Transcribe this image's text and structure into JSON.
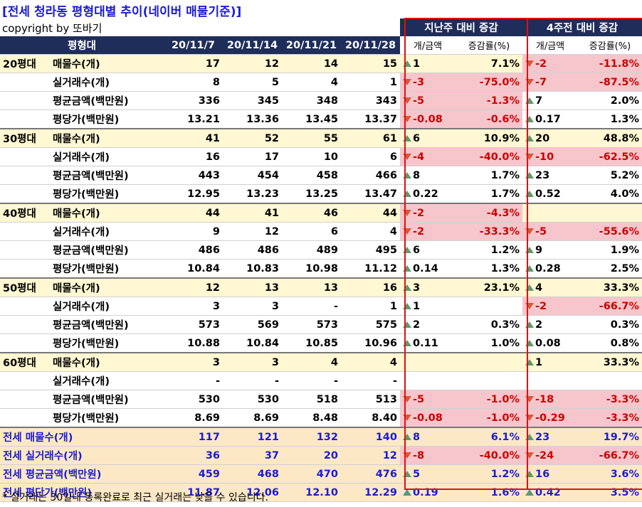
{
  "title": "[전세 청라동 평형대별 추이(네이버 매물기준)]",
  "copyright": "copyright by 또바기",
  "footnote": "* 실거래는 30일내 등록완료로 최근 실거래는 낮을 수 있습니다.",
  "group_week": "지난주 대비 증감",
  "group_4week": "4주전 대비 증감",
  "header": [
    "평형대",
    "",
    "20/11/7",
    "20/11/14",
    "20/11/21",
    "20/11/28",
    "개/금액",
    "증감률(%)",
    "개/금액",
    "증감률(%)"
  ],
  "rows": [
    [
      "20평대",
      "매물수(개)",
      "17",
      "12",
      "14",
      "15",
      "up",
      "1",
      "7.1%",
      "down",
      "-2",
      "-11.8%"
    ],
    [
      "",
      "실거래수(개)",
      "8",
      "5",
      "4",
      "1",
      "down",
      "-3",
      "-75.0%",
      "down",
      "-7",
      "-87.5%"
    ],
    [
      "",
      "평균금액(백만원)",
      "336",
      "345",
      "348",
      "343",
      "down",
      "-5",
      "-1.3%",
      "up",
      "7",
      "2.0%"
    ],
    [
      "",
      "평당가(백만원)",
      "13.21",
      "13.36",
      "13.45",
      "13.37",
      "down",
      "-0.08",
      "-0.6%",
      "up",
      "0.17",
      "1.3%"
    ],
    [
      "30평대",
      "매물수(개)",
      "41",
      "52",
      "55",
      "61",
      "up",
      "6",
      "10.9%",
      "up",
      "20",
      "48.8%"
    ],
    [
      "",
      "실거래수(개)",
      "16",
      "17",
      "10",
      "6",
      "down",
      "-4",
      "-40.0%",
      "down",
      "-10",
      "-62.5%"
    ],
    [
      "",
      "평균금액(백만원)",
      "443",
      "454",
      "458",
      "466",
      "up",
      "8",
      "1.7%",
      "up",
      "23",
      "5.2%"
    ],
    [
      "",
      "평당가(백만원)",
      "12.95",
      "13.23",
      "13.25",
      "13.47",
      "up",
      "0.22",
      "1.7%",
      "up",
      "0.52",
      "4.0%"
    ],
    [
      "40평대",
      "매물수(개)",
      "44",
      "41",
      "46",
      "44",
      "down",
      "-2",
      "-4.3%",
      "",
      "",
      ""
    ],
    [
      "",
      "실거래수(개)",
      "9",
      "12",
      "6",
      "4",
      "down",
      "-2",
      "-33.3%",
      "down",
      "-5",
      "-55.6%"
    ],
    [
      "",
      "평균금액(백만원)",
      "486",
      "486",
      "489",
      "495",
      "up",
      "6",
      "1.2%",
      "up",
      "9",
      "1.9%"
    ],
    [
      "",
      "평당가(백만원)",
      "10.84",
      "10.83",
      "10.98",
      "11.12",
      "up",
      "0.14",
      "1.3%",
      "up",
      "0.28",
      "2.5%"
    ],
    [
      "50평대",
      "매물수(개)",
      "12",
      "13",
      "13",
      "16",
      "up",
      "3",
      "23.1%",
      "up",
      "4",
      "33.3%"
    ],
    [
      "",
      "실거래수(개)",
      "3",
      "3",
      "-",
      "1",
      "up",
      "1",
      "",
      "down",
      "-2",
      "-66.7%"
    ],
    [
      "",
      "평균금액(백만원)",
      "573",
      "569",
      "573",
      "575",
      "up",
      "2",
      "0.3%",
      "up",
      "2",
      "0.3%"
    ],
    [
      "",
      "평당가(백만원)",
      "10.88",
      "10.84",
      "10.85",
      "10.96",
      "up",
      "0.11",
      "1.0%",
      "up",
      "0.08",
      "0.8%"
    ],
    [
      "60평대",
      "매물수(개)",
      "3",
      "3",
      "4",
      "4",
      "",
      "",
      "",
      "up",
      "1",
      "33.3%"
    ],
    [
      "",
      "실거래수(개)",
      "-",
      "-",
      "-",
      "-",
      "",
      "",
      "",
      "",
      "",
      ""
    ],
    [
      "",
      "평균금액(백만원)",
      "530",
      "530",
      "518",
      "513",
      "down",
      "-5",
      "-1.0%",
      "down",
      "-18",
      "-3.3%"
    ],
    [
      "",
      "평당가(백만원)",
      "8.69",
      "8.69",
      "8.48",
      "8.40",
      "down",
      "-0.08",
      "-1.0%",
      "down",
      "-0.29",
      "-3.3%"
    ]
  ],
  "totals": [
    [
      "전세 매물수(개)",
      "117",
      "121",
      "132",
      "140",
      "up",
      "8",
      "6.1%",
      "up",
      "23",
      "19.7%"
    ],
    [
      "전세 실거래수(개)",
      "36",
      "37",
      "20",
      "12",
      "down",
      "-8",
      "-40.0%",
      "down",
      "-24",
      "-66.7%"
    ],
    [
      "전세 평균금액(백만원)",
      "459",
      "468",
      "470",
      "476",
      "up",
      "5",
      "1.2%",
      "up",
      "16",
      "3.6%"
    ],
    [
      "전세 평단가(백만원)",
      "11.87",
      "12.06",
      "12.10",
      "12.29",
      "up",
      "0.19",
      "1.6%",
      "up",
      "0.42",
      "3.5%"
    ]
  ]
}
